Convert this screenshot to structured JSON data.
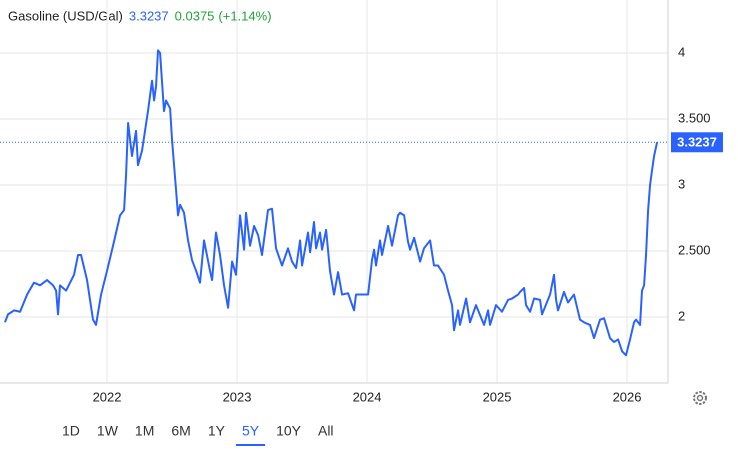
{
  "chart_data": {
    "type": "line",
    "last_value": 3.3237,
    "change": "0.0375",
    "change_pct": "(+1.14%)",
    "range_buttons": [
      "1D",
      "1W",
      "1M",
      "6M",
      "1Y",
      "5Y",
      "10Y",
      "All"
    ],
    "selected_range": "5Y",
    "grid": true,
    "xlim": [
      2021.215,
      2026.315
    ],
    "xticks": [
      2022,
      2023,
      2024,
      2025,
      2026
    ],
    "ylim": [
      1.5,
      4.25
    ],
    "yticks": [
      {
        "value": 2,
        "label": "2"
      },
      {
        "value": 2.5,
        "label": "2.500"
      },
      {
        "value": 3,
        "label": "3"
      },
      {
        "value": 3.5,
        "label": "3.500"
      },
      {
        "value": 4,
        "label": "4"
      }
    ],
    "x": [
      2021.215,
      2021.238,
      2021.285,
      2021.331,
      2021.385,
      2021.438,
      2021.485,
      2021.538,
      2021.585,
      2021.608,
      2021.623,
      2021.638,
      2021.685,
      2021.746,
      2021.777,
      2021.8,
      2021.846,
      2021.892,
      2021.915,
      2021.954,
      2022.0,
      2022.046,
      2022.1,
      2022.131,
      2022.146,
      2022.162,
      2022.192,
      2022.223,
      2022.238,
      2022.269,
      2022.315,
      2022.346,
      2022.362,
      2022.377,
      2022.392,
      2022.408,
      2022.438,
      2022.454,
      2022.485,
      2022.5,
      2022.531,
      2022.546,
      2022.562,
      2022.592,
      2022.623,
      2022.654,
      2022.685,
      2022.715,
      2022.746,
      2022.792,
      2022.808,
      2022.838,
      2022.869,
      2022.9,
      2022.931,
      2022.962,
      2022.992,
      2023.023,
      2023.054,
      2023.069,
      2023.1,
      2023.131,
      2023.162,
      2023.192,
      2023.238,
      2023.269,
      2023.3,
      2023.346,
      2023.392,
      2023.423,
      2023.454,
      2023.485,
      2023.5,
      2023.546,
      2023.562,
      2023.592,
      2023.608,
      2023.638,
      2023.654,
      2023.685,
      2023.715,
      2023.746,
      2023.777,
      2023.808,
      2023.854,
      2023.9,
      2023.915,
      2023.962,
      2024.008,
      2024.038,
      2024.054,
      2024.069,
      2024.1,
      2024.115,
      2024.162,
      2024.192,
      2024.238,
      2024.254,
      2024.285,
      2024.315,
      2024.331,
      2024.362,
      2024.408,
      2024.438,
      2024.485,
      2024.515,
      2024.546,
      2024.592,
      2024.623,
      2024.654,
      2024.669,
      2024.7,
      2024.715,
      2024.762,
      2024.792,
      2024.838,
      2024.9,
      2024.931,
      2024.946,
      2024.992,
      2025.038,
      2025.085,
      2025.115,
      2025.162,
      2025.177,
      2025.208,
      2025.223,
      2025.254,
      2025.285,
      2025.331,
      2025.346,
      2025.408,
      2025.438,
      2025.454,
      2025.469,
      2025.515,
      2025.546,
      2025.592,
      2025.638,
      2025.669,
      2025.715,
      2025.746,
      2025.792,
      2025.823,
      2025.869,
      2025.9,
      2025.931,
      2025.962,
      2025.992,
      2026.023,
      2026.054,
      2026.069,
      2026.1,
      2026.115,
      2026.131,
      2026.146,
      2026.162,
      2026.177,
      2026.192,
      2026.208,
      2026.231
    ],
    "series": [
      {
        "name": "Gasoline (USD/Gal)",
        "color": "#2962ff",
        "values": [
          1.96,
          2.02,
          2.05,
          2.04,
          2.17,
          2.26,
          2.24,
          2.28,
          2.24,
          2.2,
          2.02,
          2.24,
          2.2,
          2.32,
          2.47,
          2.47,
          2.28,
          1.98,
          1.94,
          2.17,
          2.35,
          2.54,
          2.77,
          2.81,
          3.07,
          3.47,
          3.22,
          3.41,
          3.15,
          3.26,
          3.56,
          3.79,
          3.64,
          3.75,
          4.02,
          4.0,
          3.56,
          3.64,
          3.58,
          3.34,
          2.96,
          2.77,
          2.85,
          2.79,
          2.58,
          2.43,
          2.35,
          2.26,
          2.58,
          2.35,
          2.28,
          2.64,
          2.47,
          2.24,
          2.07,
          2.42,
          2.32,
          2.77,
          2.51,
          2.79,
          2.54,
          2.69,
          2.62,
          2.47,
          2.81,
          2.82,
          2.52,
          2.39,
          2.52,
          2.42,
          2.37,
          2.58,
          2.39,
          2.64,
          2.49,
          2.72,
          2.52,
          2.64,
          2.51,
          2.66,
          2.35,
          2.17,
          2.34,
          2.17,
          2.18,
          2.05,
          2.17,
          2.17,
          2.17,
          2.43,
          2.51,
          2.39,
          2.58,
          2.47,
          2.69,
          2.54,
          2.77,
          2.79,
          2.77,
          2.57,
          2.51,
          2.6,
          2.42,
          2.52,
          2.58,
          2.39,
          2.39,
          2.32,
          2.2,
          2.09,
          1.9,
          2.05,
          1.94,
          2.14,
          1.96,
          2.09,
          1.94,
          2.05,
          1.94,
          2.09,
          2.04,
          2.13,
          2.14,
          2.17,
          2.19,
          2.22,
          2.09,
          2.04,
          2.14,
          2.13,
          2.02,
          2.17,
          2.32,
          2.13,
          2.05,
          2.19,
          2.11,
          2.17,
          1.98,
          1.96,
          1.94,
          1.84,
          1.98,
          1.99,
          1.84,
          1.81,
          1.83,
          1.74,
          1.71,
          1.83,
          1.96,
          1.98,
          1.94,
          2.2,
          2.24,
          2.47,
          2.81,
          3.0,
          3.11,
          3.22,
          3.3237
        ]
      }
    ]
  }
}
